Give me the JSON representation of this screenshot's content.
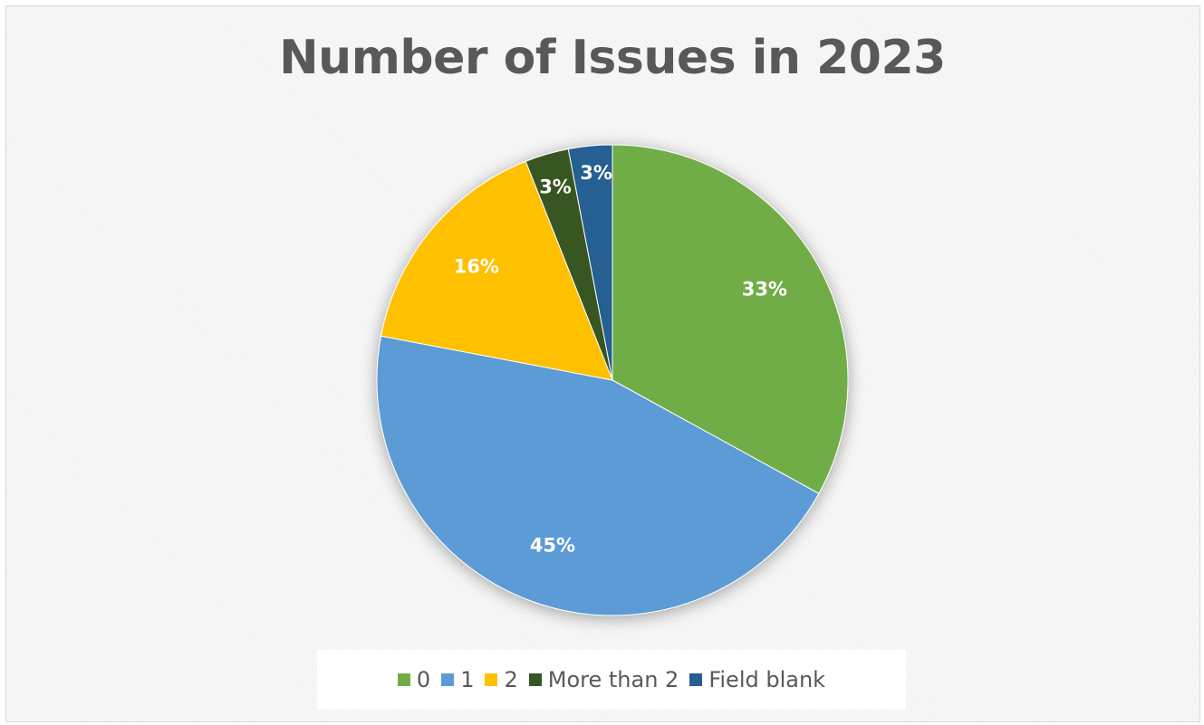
{
  "chart_data": {
    "type": "pie",
    "title": "Number of Issues in 2023",
    "categories": [
      "0",
      "1",
      "2",
      "More than 2",
      "Field blank"
    ],
    "values": [
      33,
      45,
      16,
      3,
      3
    ],
    "labels": [
      "33%",
      "45%",
      "16%",
      "3%",
      "3%"
    ],
    "colors": [
      "#70AD47",
      "#5B9BD5",
      "#FFC000",
      "#375623",
      "#255E91"
    ],
    "legend_position": "bottom"
  }
}
